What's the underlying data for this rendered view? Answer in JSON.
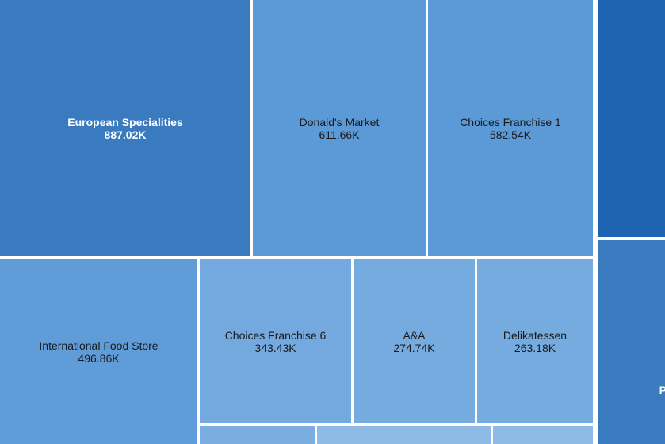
{
  "chart_data": {
    "type": "treemap",
    "title": "",
    "series": [
      {
        "items": [
          {
            "name": "European Specialities",
            "display": "887.02K",
            "value": 887.02,
            "color": "#3a7bc0"
          },
          {
            "name": "Donald's Market",
            "display": "611.66K",
            "value": 611.66,
            "color": "#5b9ad6"
          },
          {
            "name": "Choices Franchise 1",
            "display": "582.54K",
            "value": 582.54,
            "color": "#5b9ad6"
          },
          {
            "name": "International Food Store",
            "display": "496.86K",
            "value": 496.86,
            "color": "#5f9cd8"
          },
          {
            "name": "Choices Franchise 6",
            "display": "343.43K",
            "value": 343.43,
            "color": "#73a9de"
          },
          {
            "name": "A&A",
            "display": "274.74K",
            "value": 274.74,
            "color": "#75abdf"
          },
          {
            "name": "Delikatessen",
            "display": "263.18K",
            "value": 263.18,
            "color": "#75abdf"
          },
          {
            "name": "",
            "display": "",
            "value": null,
            "color": "#1f63b3"
          },
          {
            "name": "P",
            "display": "",
            "value": null,
            "color": "#3a7bc0"
          },
          {
            "name": "",
            "display": "",
            "value": null,
            "color": "#7aaee0"
          },
          {
            "name": "",
            "display": "",
            "value": null,
            "color": "#8dbbe6"
          },
          {
            "name": "",
            "display": "",
            "value": null,
            "color": "#8dbbe6"
          }
        ]
      }
    ]
  }
}
